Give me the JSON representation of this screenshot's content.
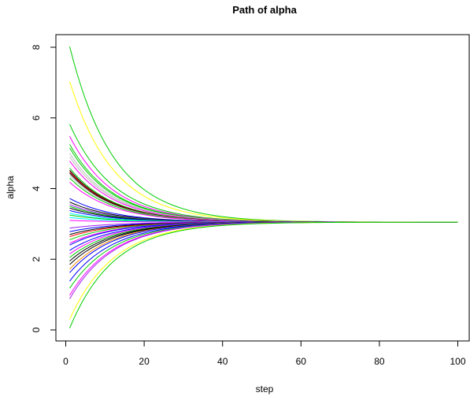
{
  "chart_data": {
    "type": "line",
    "title": "Path of alpha",
    "xlabel": "step",
    "ylabel": "alpha",
    "xlim": [
      1,
      100
    ],
    "ylim": [
      0,
      8
    ],
    "xticks": [
      0,
      20,
      40,
      60,
      80,
      100
    ],
    "yticks": [
      0,
      2,
      4,
      6,
      8
    ],
    "grid": false,
    "converged_value": 3.05,
    "path_model": "value(step) = converged_value + (start - converged_value) * decay^(step - 1)",
    "series": [
      {
        "start": 8.02,
        "decay": 0.915,
        "color": "#00cc00"
      },
      {
        "start": 7.03,
        "decay": 0.915,
        "color": "#ffff00"
      },
      {
        "start": 5.82,
        "decay": 0.915,
        "color": "#00cc00"
      },
      {
        "start": 5.48,
        "decay": 0.915,
        "color": "#ff00ff"
      },
      {
        "start": 5.25,
        "decay": 0.915,
        "color": "#00cc00"
      },
      {
        "start": 5.15,
        "decay": 0.915,
        "color": "#00cc00"
      },
      {
        "start": 5.0,
        "decay": 0.915,
        "color": "#bebebe"
      },
      {
        "start": 4.9,
        "decay": 0.915,
        "color": "#bebebe"
      },
      {
        "start": 4.78,
        "decay": 0.915,
        "color": "#ff00ff"
      },
      {
        "start": 4.58,
        "decay": 0.915,
        "color": "#00cc00"
      },
      {
        "start": 4.52,
        "decay": 0.915,
        "color": "#000000"
      },
      {
        "start": 4.48,
        "decay": 0.915,
        "color": "#ff0000"
      },
      {
        "start": 4.44,
        "decay": 0.915,
        "color": "#000000"
      },
      {
        "start": 4.38,
        "decay": 0.915,
        "color": "#bebebe"
      },
      {
        "start": 4.3,
        "decay": 0.915,
        "color": "#00cc00"
      },
      {
        "start": 4.18,
        "decay": 0.915,
        "color": "#ff00ff"
      },
      {
        "start": 3.72,
        "decay": 0.915,
        "color": "#0000ff"
      },
      {
        "start": 3.62,
        "decay": 0.915,
        "color": "#000000"
      },
      {
        "start": 3.55,
        "decay": 0.915,
        "color": "#a020f0"
      },
      {
        "start": 3.5,
        "decay": 0.915,
        "color": "#00cc00"
      },
      {
        "start": 3.45,
        "decay": 0.915,
        "color": "#000000"
      },
      {
        "start": 3.38,
        "decay": 0.915,
        "color": "#0000ff"
      },
      {
        "start": 3.3,
        "decay": 0.915,
        "color": "#00ffff"
      },
      {
        "start": 3.25,
        "decay": 0.915,
        "color": "#00cc00"
      },
      {
        "start": 3.18,
        "decay": 0.915,
        "color": "#00ffff"
      },
      {
        "start": 3.1,
        "decay": 0.915,
        "color": "#ff00ff"
      },
      {
        "start": 2.88,
        "decay": 0.915,
        "color": "#a020f0"
      },
      {
        "start": 2.78,
        "decay": 0.915,
        "color": "#0000ff"
      },
      {
        "start": 2.7,
        "decay": 0.915,
        "color": "#000000"
      },
      {
        "start": 2.64,
        "decay": 0.915,
        "color": "#ff0000"
      },
      {
        "start": 2.55,
        "decay": 0.915,
        "color": "#00cc00"
      },
      {
        "start": 2.45,
        "decay": 0.915,
        "color": "#ff00ff"
      },
      {
        "start": 2.4,
        "decay": 0.915,
        "color": "#0000ff"
      },
      {
        "start": 2.25,
        "decay": 0.915,
        "color": "#0000ff"
      },
      {
        "start": 2.15,
        "decay": 0.915,
        "color": "#ff00ff"
      },
      {
        "start": 2.05,
        "decay": 0.915,
        "color": "#00cc00"
      },
      {
        "start": 1.95,
        "decay": 0.915,
        "color": "#000000"
      },
      {
        "start": 1.85,
        "decay": 0.915,
        "color": "#000000"
      },
      {
        "start": 1.72,
        "decay": 0.915,
        "color": "#ff8c00"
      },
      {
        "start": 1.62,
        "decay": 0.915,
        "color": "#0000ff"
      },
      {
        "start": 1.38,
        "decay": 0.915,
        "color": "#0000ff"
      },
      {
        "start": 1.18,
        "decay": 0.915,
        "color": "#00cc00"
      },
      {
        "start": 0.98,
        "decay": 0.915,
        "color": "#ff00ff"
      },
      {
        "start": 0.88,
        "decay": 0.915,
        "color": "#a020f0"
      },
      {
        "start": 0.3,
        "decay": 0.915,
        "color": "#ffff00"
      },
      {
        "start": 0.05,
        "decay": 0.915,
        "color": "#00cc00"
      }
    ]
  }
}
